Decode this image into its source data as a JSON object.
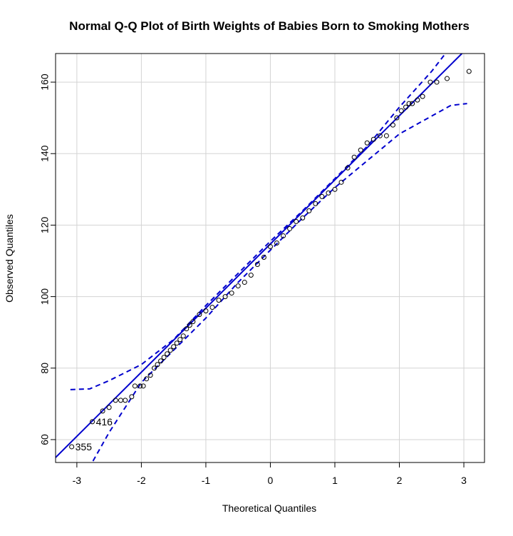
{
  "chart_data": {
    "type": "qqplot",
    "title": "Normal Q-Q Plot of Birth Weights of Babies Born to Smoking Mothers",
    "x_label": "Theoretical Quantiles",
    "y_label": "Observed Quantiles",
    "xlim": [
      -3.33,
      3.32
    ],
    "ylim": [
      53.6,
      168
    ],
    "xticks": [
      -3,
      -2,
      -1,
      0,
      1,
      2,
      3
    ],
    "yticks": [
      60,
      80,
      100,
      120,
      140,
      160
    ],
    "grid": true,
    "points": {
      "color": "#000000",
      "x": [
        -3.08,
        -2.76,
        -2.6,
        -2.5,
        -2.4,
        -2.32,
        -2.25,
        -2.15,
        -2.1,
        -2.02,
        -1.97,
        -1.92,
        -1.86,
        -1.8,
        -1.75,
        -1.7,
        -1.65,
        -1.6,
        -1.55,
        -1.5,
        -1.45,
        -1.4,
        -1.35,
        -1.3,
        -1.25,
        -1.2,
        -1.1,
        -1.0,
        -0.9,
        -0.8,
        -0.7,
        -0.6,
        -0.5,
        -0.4,
        -0.3,
        -0.2,
        -0.1,
        0,
        0.1,
        0.2,
        0.3,
        0.4,
        0.5,
        0.6,
        0.7,
        0.8,
        0.9,
        1.0,
        1.1,
        1.2,
        1.3,
        1.4,
        1.5,
        1.6,
        1.7,
        1.8,
        1.9,
        1.96,
        2.03,
        2.1,
        2.15,
        2.2,
        2.28,
        2.36,
        2.48,
        2.58,
        2.74,
        3.08
      ],
      "values": [
        58,
        65,
        68,
        69,
        71,
        71,
        71,
        72,
        75,
        75,
        75,
        77,
        78,
        80,
        81,
        82,
        83,
        84,
        85,
        86,
        87,
        88,
        89,
        91,
        92,
        93,
        95,
        96,
        97,
        99,
        100,
        101,
        103,
        104,
        106,
        109,
        111,
        114,
        115,
        117,
        119,
        121,
        122,
        124,
        126,
        128,
        129,
        130,
        132,
        136,
        139,
        141,
        143,
        144,
        145,
        145,
        148,
        150,
        152,
        153,
        154,
        154,
        155,
        156,
        160,
        160,
        161,
        163
      ]
    },
    "annotations": [
      {
        "text": "355",
        "x": -3.08,
        "y": 58
      },
      {
        "text": "416",
        "x": -2.76,
        "y": 65
      }
    ],
    "series": [
      {
        "kind": "reference",
        "color": "#0000cd",
        "x": [
          -3.33,
          2.97
        ],
        "values": [
          55,
          168
        ]
      },
      {
        "kind": "upper",
        "color": "#0000cd",
        "x": [
          -3.1,
          -2.8,
          -2.5,
          -2,
          -1.5,
          -1,
          -0.5,
          0,
          0.5,
          1,
          1.5,
          2,
          2.5,
          2.8
        ],
        "values": [
          74,
          74.2,
          76.5,
          81,
          88,
          97.5,
          106.5,
          115.5,
          124,
          133,
          142,
          153,
          163,
          170
        ]
      },
      {
        "kind": "lower",
        "color": "#0000cd",
        "x": [
          -2.75,
          -2.5,
          -2,
          -1.5,
          -1,
          -0.5,
          0,
          0.5,
          1,
          1.5,
          2,
          2.5,
          2.8,
          3.05
        ],
        "values": [
          54,
          62,
          76,
          85,
          94,
          104,
          113,
          122,
          130.5,
          138,
          145.5,
          150.5,
          153.5,
          154
        ]
      }
    ]
  }
}
